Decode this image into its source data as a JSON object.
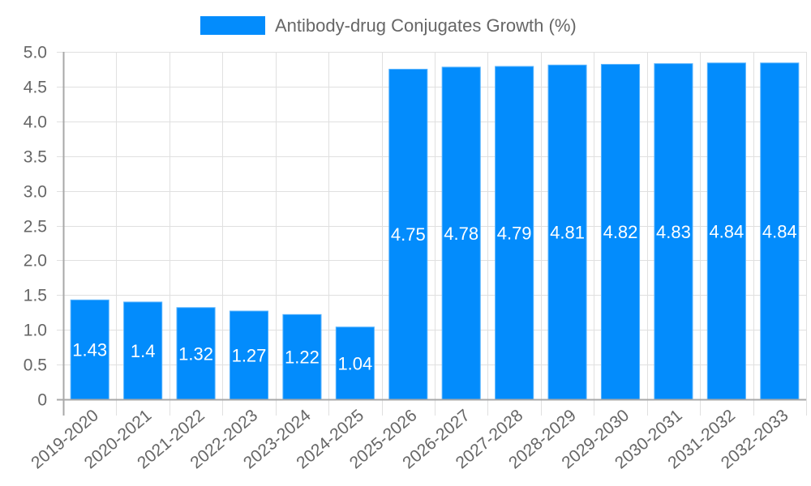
{
  "legend": {
    "label": "Antibody-drug Conjugates Growth (%)",
    "color": "#038cfc"
  },
  "colors": {
    "bar": "#038cfc",
    "bar_border": "#5ab4fd",
    "grid": "#e0e0e0",
    "axis": "#a8a8a8",
    "text": "#666666",
    "label": "#ffffff"
  },
  "chart_data": {
    "type": "bar",
    "title": "",
    "xlabel": "",
    "ylabel": "",
    "legend": [
      "Antibody-drug Conjugates Growth (%)"
    ],
    "legend_position": "top",
    "grid": true,
    "ylim": [
      0,
      5.0
    ],
    "yticks": [
      "0",
      "0.5",
      "1.0",
      "1.5",
      "2.0",
      "2.5",
      "3.0",
      "3.5",
      "4.0",
      "4.5",
      "5.0"
    ],
    "categories": [
      "2019-2020",
      "2020-2021",
      "2021-2022",
      "2022-2023",
      "2023-2024",
      "2024-2025",
      "2025-2026",
      "2026-2027",
      "2027-2028",
      "2028-2029",
      "2029-2030",
      "2030-2031",
      "2031-2032",
      "2032-2033"
    ],
    "series": [
      {
        "name": "Antibody-drug Conjugates Growth (%)",
        "values": [
          1.43,
          1.4,
          1.32,
          1.27,
          1.22,
          1.04,
          4.75,
          4.78,
          4.79,
          4.81,
          4.82,
          4.83,
          4.84,
          4.84
        ],
        "labels": [
          "1.43",
          "1.4",
          "1.32",
          "1.27",
          "1.22",
          "1.04",
          "4.75",
          "4.78",
          "4.79",
          "4.81",
          "4.82",
          "4.83",
          "4.84",
          "4.84"
        ]
      }
    ]
  }
}
